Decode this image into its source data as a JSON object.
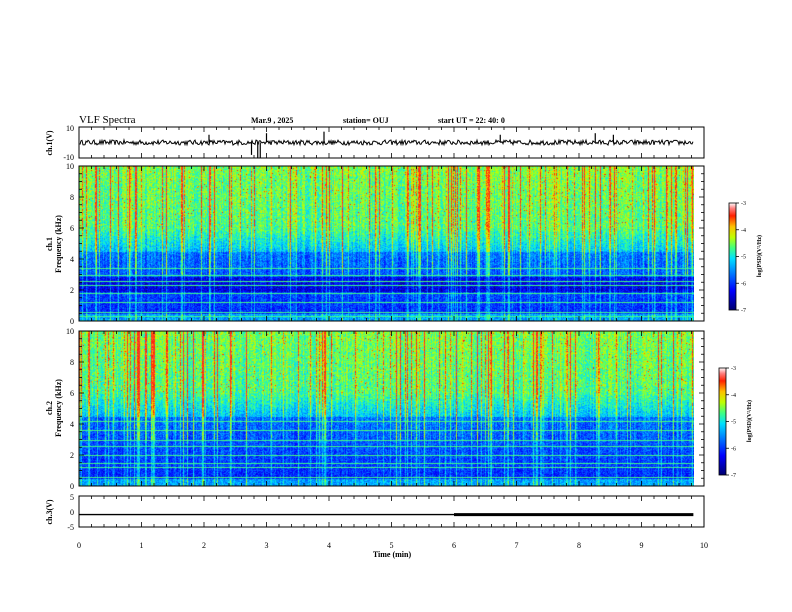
{
  "header": {
    "title": "VLF Spectra",
    "date": "Mar.9  , 2025",
    "station": "station= OUJ",
    "start": "start  UT  =   22: 40: 0"
  },
  "colors": {
    "colormap": [
      "#000000",
      "#0000a0",
      "#0000ff",
      "#0064ff",
      "#00c8ff",
      "#00ffc8",
      "#50ff50",
      "#c8ff00",
      "#ffc800",
      "#ff6400",
      "#ff0000",
      "#ffffff"
    ],
    "trace": "#000000",
    "axis": "#000000"
  },
  "chart_data": [
    {
      "type": "line",
      "name": "ch1-waveform",
      "ylabel": "ch.1(V)",
      "ylim": [
        -10,
        10
      ],
      "y_ticks": [
        10,
        -10
      ],
      "xlim": [
        0,
        10
      ],
      "baseline": 0,
      "spikes_min": [
        2.08,
        2.76,
        2.86,
        2.9,
        3.0,
        3.92,
        6.74,
        8.26,
        8.55
      ],
      "spike_values": [
        5,
        -8,
        -10,
        -10,
        6,
        7,
        5,
        6,
        5
      ]
    },
    {
      "type": "heatmap",
      "name": "ch1-spectrogram",
      "ylabel_line1": "ch.1",
      "ylabel_line2": "Frequency (kHz)",
      "ylim": [
        0,
        10
      ],
      "y_ticks": [
        "0",
        "2",
        "4",
        "6",
        "8",
        "10"
      ],
      "xlim": [
        0,
        10
      ],
      "data_end_min": 9.83,
      "colorbar": {
        "label": "log(PSD)(V²/Hz)",
        "range": [
          -7,
          -3
        ],
        "ticks": [
          "-3",
          "-4",
          "-5",
          "-6",
          "-7"
        ]
      },
      "narrowband_khz": [
        0.3,
        0.6,
        1.2,
        1.8,
        2.3,
        2.6,
        3.0,
        3.4
      ]
    },
    {
      "type": "heatmap",
      "name": "ch2-spectrogram",
      "ylabel_line1": "ch.2",
      "ylabel_line2": "Frequency (kHz)",
      "ylim": [
        0,
        10
      ],
      "y_ticks": [
        "0",
        "2",
        "4",
        "6",
        "8",
        "10"
      ],
      "xlim": [
        0,
        10
      ],
      "data_end_min": 9.83,
      "colorbar": {
        "label": "log(PSD)(V²/Hz)",
        "range": [
          -7,
          -3
        ],
        "ticks": [
          "-3",
          "-4",
          "-5",
          "-6",
          "-7"
        ]
      },
      "narrowband_khz": [
        0.6,
        1.2,
        1.5,
        2.0,
        2.6,
        3.0,
        3.6,
        4.2
      ]
    },
    {
      "type": "line",
      "name": "ch3-voltage",
      "ylabel": "ch.3(V)",
      "ylim": [
        -5,
        5
      ],
      "y_ticks": [
        "5",
        "0",
        "-5"
      ],
      "xlim": [
        0,
        10
      ],
      "segments": [
        {
          "x0": 0,
          "x1": 6.0,
          "y": -1.0,
          "width": "thin"
        },
        {
          "x0": 6.0,
          "x1": 9.83,
          "y": -1.0,
          "width": "thick"
        }
      ]
    }
  ],
  "xaxis": {
    "label": "Time  (min)",
    "ticks": [
      "0",
      "1",
      "2",
      "3",
      "4",
      "5",
      "6",
      "7",
      "8",
      "9",
      "10"
    ],
    "range": [
      0,
      10
    ]
  }
}
